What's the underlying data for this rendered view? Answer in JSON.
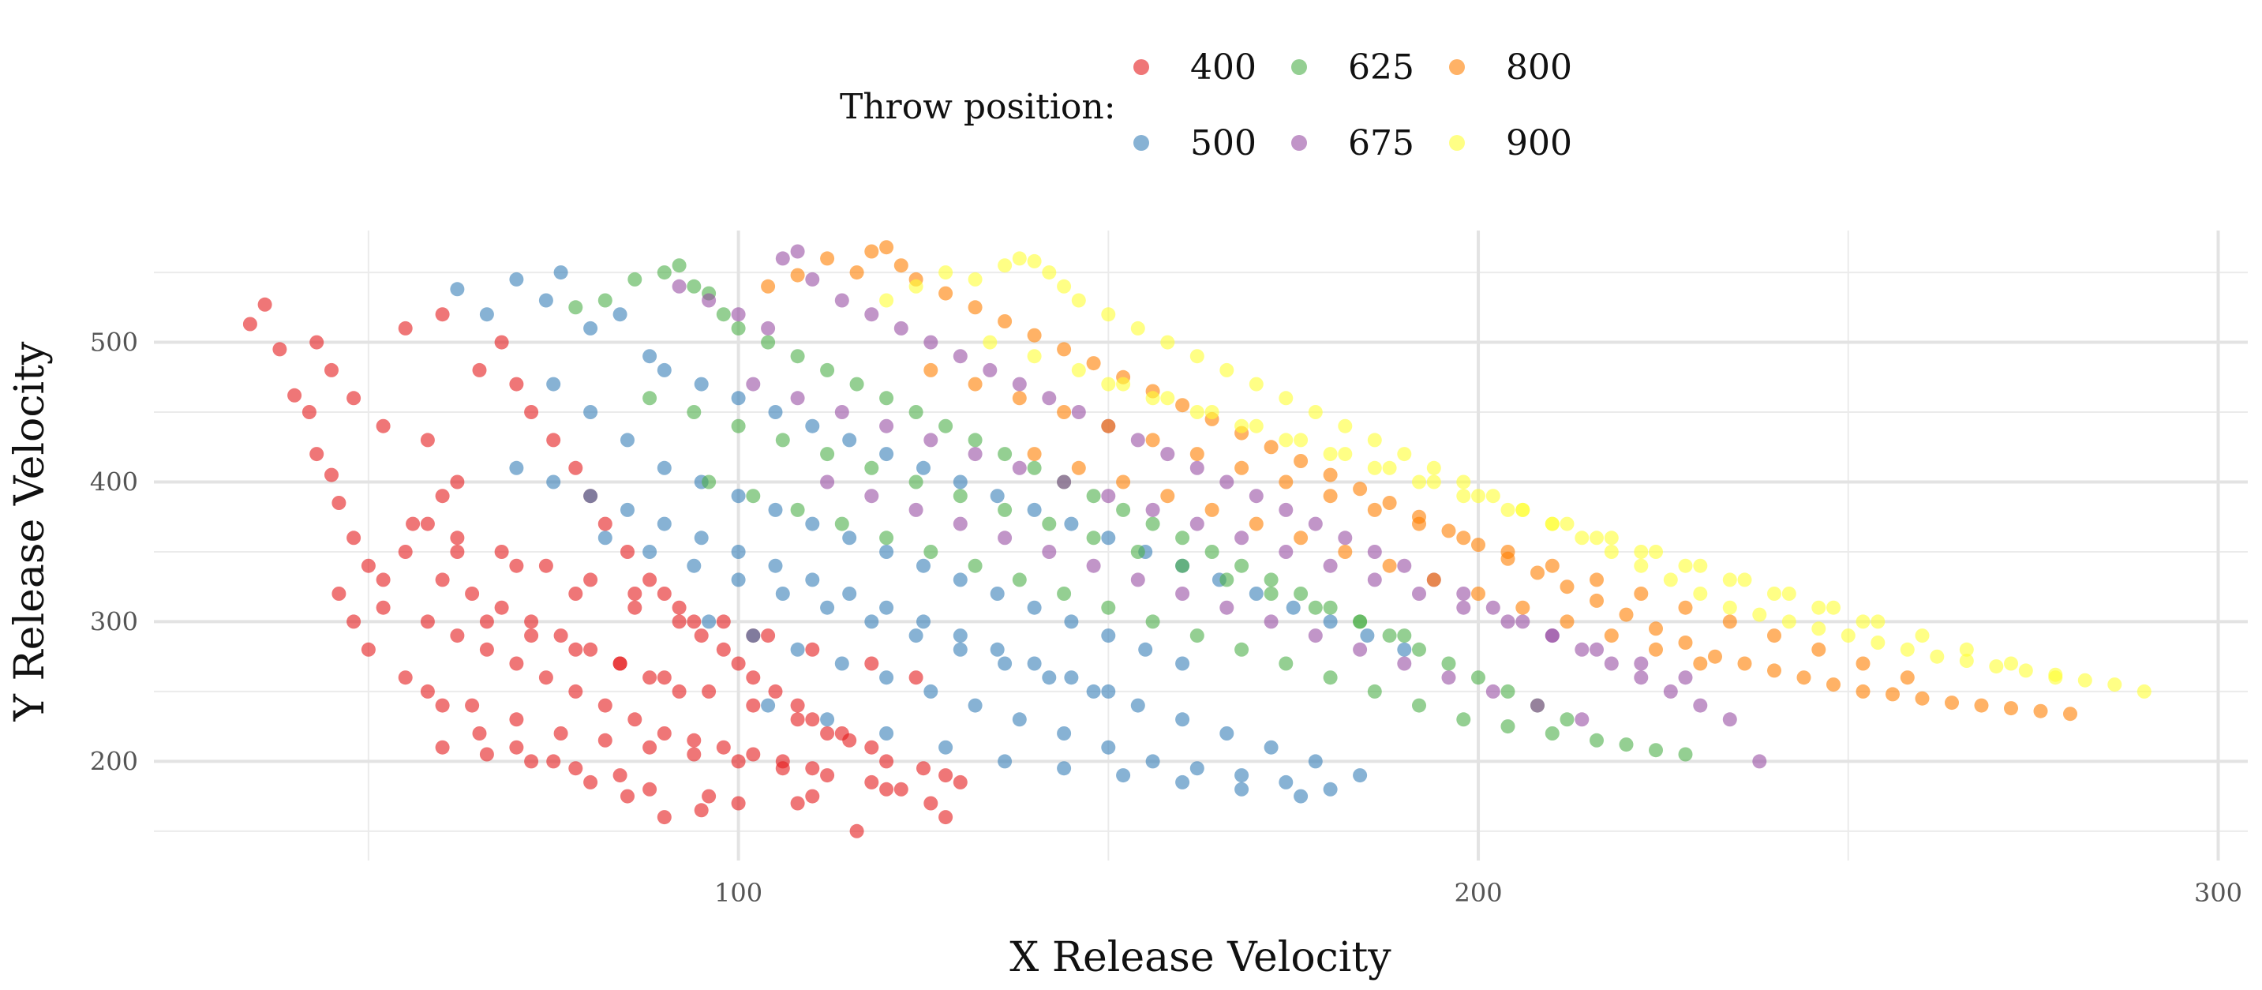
{
  "legend": {
    "title": "Throw position:",
    "entries": [
      {
        "label": "400",
        "color": "#E41A1C"
      },
      {
        "label": "625",
        "color": "#4DAF4A"
      },
      {
        "label": "800",
        "color": "#FF7F00"
      },
      {
        "label": "500",
        "color": "#377EB8"
      },
      {
        "label": "675",
        "color": "#984EA3"
      },
      {
        "label": "900",
        "color": "#FFFF33"
      }
    ]
  },
  "chart_data": {
    "type": "scatter",
    "title": "",
    "xlabel": "X Release Velocity",
    "ylabel": "Y Release Velocity",
    "xlim": [
      21,
      304
    ],
    "ylim": [
      129,
      580
    ],
    "x_ticks": [
      100,
      200,
      300
    ],
    "y_ticks": [
      200,
      300,
      400,
      500
    ],
    "grid": true,
    "legend_position": "top",
    "point_opacity": 0.6,
    "series": [
      {
        "name": "400",
        "color": "#E41A1C",
        "x": [
          34,
          36,
          38,
          40,
          42,
          43,
          45,
          46,
          48,
          50,
          52,
          55,
          58,
          60,
          62,
          58,
          52,
          48,
          45,
          43,
          55,
          60,
          65,
          68,
          70,
          72,
          75,
          78,
          80,
          82,
          85,
          88,
          90,
          92,
          95,
          98,
          100,
          102,
          105,
          108,
          110,
          112,
          115,
          118,
          120,
          125,
          128,
          130,
          120,
          110,
          100,
          95,
          90,
          85,
          80,
          75,
          70,
          65,
          60,
          55,
          50,
          48,
          46,
          52,
          58,
          62,
          66,
          70,
          74,
          78,
          82,
          86,
          90,
          94,
          98,
          102,
          106,
          110,
          60,
          64,
          68,
          72,
          76,
          80,
          84,
          88,
          92,
          56,
          62,
          68,
          74,
          80,
          86,
          92,
          98,
          104,
          58,
          64,
          70,
          76,
          82,
          88,
          94,
          100,
          106,
          112,
          118,
          122,
          126,
          128,
          116,
          108,
          96,
          88,
          84,
          78,
          72,
          66,
          60,
          66,
          72,
          78,
          84,
          90,
          96,
          102,
          108,
          114,
          62,
          70,
          78,
          86,
          94,
          102,
          110,
          118,
          124
        ],
        "y": [
          513,
          527,
          495,
          462,
          450,
          420,
          405,
          385,
          360,
          340,
          330,
          350,
          370,
          390,
          400,
          430,
          440,
          460,
          480,
          500,
          510,
          520,
          480,
          500,
          470,
          450,
          430,
          410,
          390,
          370,
          350,
          330,
          320,
          300,
          290,
          280,
          270,
          260,
          250,
          240,
          230,
          220,
          215,
          210,
          200,
          195,
          190,
          185,
          180,
          175,
          170,
          165,
          160,
          175,
          185,
          200,
          210,
          220,
          240,
          260,
          280,
          300,
          320,
          310,
          300,
          290,
          280,
          270,
          260,
          250,
          240,
          230,
          220,
          215,
          210,
          205,
          200,
          195,
          330,
          320,
          310,
          300,
          290,
          280,
          270,
          260,
          250,
          370,
          360,
          350,
          340,
          330,
          320,
          310,
          300,
          290,
          250,
          240,
          230,
          220,
          215,
          210,
          205,
          200,
          195,
          190,
          185,
          180,
          170,
          160,
          150,
          170,
          175,
          180,
          190,
          195,
          200,
          205,
          210,
          300,
          290,
          280,
          270,
          260,
          250,
          240,
          230,
          220,
          350,
          340,
          320,
          310,
          300,
          290,
          280,
          270,
          260
        ]
      },
      {
        "name": "500",
        "color": "#377EB8",
        "x": [
          62,
          66,
          70,
          74,
          76,
          80,
          84,
          88,
          90,
          95,
          100,
          105,
          110,
          115,
          120,
          125,
          130,
          135,
          140,
          145,
          150,
          155,
          160,
          165,
          170,
          175,
          180,
          185,
          190,
          75,
          80,
          85,
          90,
          95,
          100,
          105,
          110,
          115,
          120,
          125,
          130,
          135,
          140,
          145,
          150,
          155,
          160,
          70,
          75,
          80,
          85,
          90,
          95,
          100,
          105,
          110,
          115,
          120,
          125,
          130,
          135,
          140,
          145,
          150,
          82,
          88,
          94,
          100,
          106,
          112,
          118,
          124,
          130,
          136,
          142,
          148,
          154,
          160,
          166,
          172,
          178,
          184,
          96,
          102,
          108,
          114,
          120,
          126,
          132,
          138,
          144,
          150,
          156,
          162,
          168,
          174,
          180,
          104,
          112,
          120,
          128,
          136,
          144,
          152,
          160,
          168,
          176
        ],
        "y": [
          538,
          520,
          545,
          530,
          550,
          510,
          520,
          490,
          480,
          470,
          460,
          450,
          440,
          430,
          420,
          410,
          400,
          390,
          380,
          370,
          360,
          350,
          340,
          330,
          320,
          310,
          300,
          290,
          280,
          470,
          450,
          430,
          410,
          400,
          390,
          380,
          370,
          360,
          350,
          340,
          330,
          320,
          310,
          300,
          290,
          280,
          270,
          410,
          400,
          390,
          380,
          370,
          360,
          350,
          340,
          330,
          320,
          310,
          300,
          290,
          280,
          270,
          260,
          250,
          360,
          350,
          340,
          330,
          320,
          310,
          300,
          290,
          280,
          270,
          260,
          250,
          240,
          230,
          220,
          210,
          200,
          190,
          300,
          290,
          280,
          270,
          260,
          250,
          240,
          230,
          220,
          210,
          200,
          195,
          190,
          185,
          180,
          240,
          230,
          220,
          210,
          200,
          195,
          190,
          185,
          180,
          175
        ]
      },
      {
        "name": "625",
        "color": "#4DAF4A",
        "x": [
          78,
          82,
          86,
          90,
          92,
          94,
          96,
          98,
          100,
          104,
          108,
          112,
          116,
          120,
          124,
          128,
          132,
          136,
          140,
          144,
          148,
          152,
          156,
          160,
          164,
          168,
          172,
          176,
          180,
          184,
          188,
          192,
          196,
          200,
          204,
          208,
          212,
          88,
          94,
          100,
          106,
          112,
          118,
          124,
          130,
          136,
          142,
          148,
          154,
          160,
          166,
          172,
          178,
          184,
          190,
          96,
          102,
          108,
          114,
          120,
          126,
          132,
          138,
          144,
          150,
          156,
          162,
          168,
          174,
          180,
          186,
          192,
          198,
          204,
          210,
          216,
          220,
          224,
          228
        ],
        "y": [
          525,
          530,
          545,
          550,
          555,
          540,
          535,
          520,
          510,
          500,
          490,
          480,
          470,
          460,
          450,
          440,
          430,
          420,
          410,
          400,
          390,
          380,
          370,
          360,
          350,
          340,
          330,
          320,
          310,
          300,
          290,
          280,
          270,
          260,
          250,
          240,
          230,
          460,
          450,
          440,
          430,
          420,
          410,
          400,
          390,
          380,
          370,
          360,
          350,
          340,
          330,
          320,
          310,
          300,
          290,
          400,
          390,
          380,
          370,
          360,
          350,
          340,
          330,
          320,
          310,
          300,
          290,
          280,
          270,
          260,
          250,
          240,
          230,
          225,
          220,
          215,
          212,
          208,
          205
        ]
      },
      {
        "name": "675",
        "color": "#984EA3",
        "x": [
          92,
          96,
          100,
          104,
          106,
          108,
          110,
          114,
          118,
          122,
          126,
          130,
          134,
          138,
          142,
          146,
          150,
          154,
          158,
          162,
          166,
          170,
          174,
          178,
          182,
          186,
          190,
          194,
          198,
          202,
          206,
          210,
          214,
          218,
          222,
          226,
          230,
          234,
          238,
          102,
          108,
          114,
          120,
          126,
          132,
          138,
          144,
          150,
          156,
          162,
          168,
          174,
          180,
          186,
          192,
          198,
          204,
          210,
          216,
          222,
          228,
          112,
          118,
          124,
          130,
          136,
          142,
          148,
          154,
          160,
          166,
          172,
          178,
          184,
          190,
          196,
          202,
          208,
          214
        ],
        "y": [
          540,
          530,
          520,
          510,
          560,
          565,
          545,
          530,
          520,
          510,
          500,
          490,
          480,
          470,
          460,
          450,
          440,
          430,
          420,
          410,
          400,
          390,
          380,
          370,
          360,
          350,
          340,
          330,
          320,
          310,
          300,
          290,
          280,
          270,
          260,
          250,
          240,
          230,
          200,
          470,
          460,
          450,
          440,
          430,
          420,
          410,
          400,
          390,
          380,
          370,
          360,
          350,
          340,
          330,
          320,
          310,
          300,
          290,
          280,
          270,
          260,
          400,
          390,
          380,
          370,
          360,
          350,
          340,
          330,
          320,
          310,
          300,
          290,
          280,
          270,
          260,
          250,
          240,
          230
        ]
      },
      {
        "name": "800",
        "color": "#FF7F00",
        "x": [
          104,
          108,
          112,
          116,
          118,
          120,
          122,
          124,
          128,
          132,
          136,
          140,
          144,
          148,
          152,
          156,
          160,
          164,
          168,
          172,
          176,
          180,
          184,
          188,
          192,
          196,
          200,
          204,
          208,
          212,
          216,
          220,
          224,
          228,
          232,
          236,
          240,
          244,
          248,
          252,
          256,
          260,
          264,
          268,
          272,
          276,
          280,
          126,
          132,
          138,
          144,
          150,
          156,
          162,
          168,
          174,
          180,
          186,
          192,
          198,
          204,
          210,
          216,
          222,
          228,
          234,
          240,
          246,
          252,
          258,
          140,
          146,
          152,
          158,
          164,
          170,
          176,
          182,
          188,
          194,
          200,
          206,
          212,
          218,
          224,
          230
        ],
        "y": [
          540,
          548,
          560,
          550,
          565,
          568,
          555,
          545,
          535,
          525,
          515,
          505,
          495,
          485,
          475,
          465,
          455,
          445,
          435,
          425,
          415,
          405,
          395,
          385,
          375,
          365,
          355,
          345,
          335,
          325,
          315,
          305,
          295,
          285,
          275,
          270,
          265,
          260,
          255,
          250,
          248,
          245,
          242,
          240,
          238,
          236,
          234,
          480,
          470,
          460,
          450,
          440,
          430,
          420,
          410,
          400,
          390,
          380,
          370,
          360,
          350,
          340,
          330,
          320,
          310,
          300,
          290,
          280,
          270,
          260,
          420,
          410,
          400,
          390,
          380,
          370,
          360,
          350,
          340,
          330,
          320,
          310,
          300,
          290,
          280,
          270
        ]
      },
      {
        "name": "900",
        "color": "#FFFF33",
        "x": [
          120,
          124,
          128,
          132,
          136,
          138,
          140,
          142,
          144,
          146,
          150,
          154,
          158,
          162,
          166,
          170,
          174,
          178,
          182,
          186,
          190,
          194,
          198,
          202,
          206,
          210,
          214,
          218,
          222,
          226,
          230,
          234,
          238,
          242,
          246,
          250,
          254,
          258,
          262,
          266,
          270,
          274,
          278,
          282,
          286,
          290,
          134,
          140,
          146,
          152,
          158,
          164,
          170,
          176,
          182,
          188,
          194,
          200,
          206,
          212,
          218,
          224,
          230,
          236,
          242,
          248,
          254,
          260,
          266,
          272,
          278,
          150,
          156,
          162,
          168,
          174,
          180,
          186,
          192,
          198,
          204,
          210,
          216,
          222,
          228,
          234,
          240,
          246,
          252
        ],
        "y": [
          530,
          540,
          550,
          545,
          555,
          560,
          558,
          550,
          540,
          530,
          520,
          510,
          500,
          490,
          480,
          470,
          460,
          450,
          440,
          430,
          420,
          410,
          400,
          390,
          380,
          370,
          360,
          350,
          340,
          330,
          320,
          310,
          305,
          300,
          295,
          290,
          285,
          280,
          275,
          272,
          268,
          265,
          262,
          258,
          255,
          250,
          500,
          490,
          480,
          470,
          460,
          450,
          440,
          430,
          420,
          410,
          400,
          390,
          380,
          370,
          360,
          350,
          340,
          330,
          320,
          310,
          300,
          290,
          280,
          270,
          260,
          470,
          460,
          450,
          440,
          430,
          420,
          410,
          400,
          390,
          380,
          370,
          360,
          350,
          340,
          330,
          320,
          310,
          300
        ]
      }
    ]
  }
}
